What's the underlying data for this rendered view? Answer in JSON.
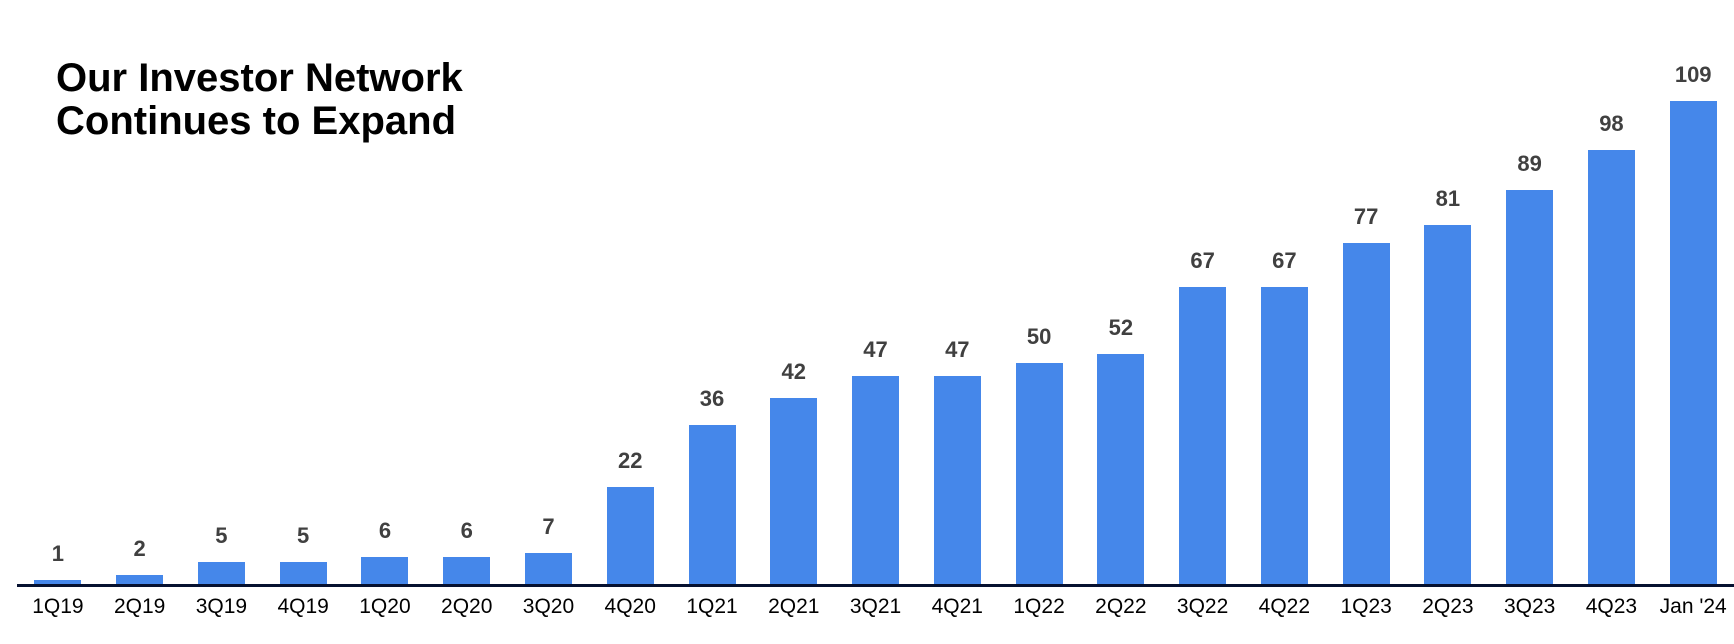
{
  "title": {
    "line1": "Our Investor Network",
    "line2": "Continues to Expand"
  },
  "chart_data": {
    "type": "bar",
    "title": "Our Investor Network Continues to Expand",
    "categories": [
      "1Q19",
      "2Q19",
      "3Q19",
      "4Q19",
      "1Q20",
      "2Q20",
      "3Q20",
      "4Q20",
      "1Q21",
      "2Q21",
      "3Q21",
      "4Q21",
      "1Q22",
      "2Q22",
      "3Q22",
      "4Q22",
      "1Q23",
      "2Q23",
      "3Q23",
      "4Q23",
      "Jan '24"
    ],
    "values": [
      1,
      2,
      5,
      5,
      6,
      6,
      7,
      22,
      36,
      42,
      47,
      47,
      50,
      52,
      67,
      67,
      77,
      81,
      89,
      98,
      109
    ],
    "xlabel": "",
    "ylabel": "",
    "ylim": [
      0,
      115
    ],
    "grid": false,
    "legend": "none",
    "data_labels": "above-bars"
  },
  "colors": {
    "background": "#ffffff",
    "bar": "#4587ea",
    "value_label": "#404040",
    "axis_line": "#061130",
    "tick_label": "#000000",
    "title": "#000000"
  }
}
